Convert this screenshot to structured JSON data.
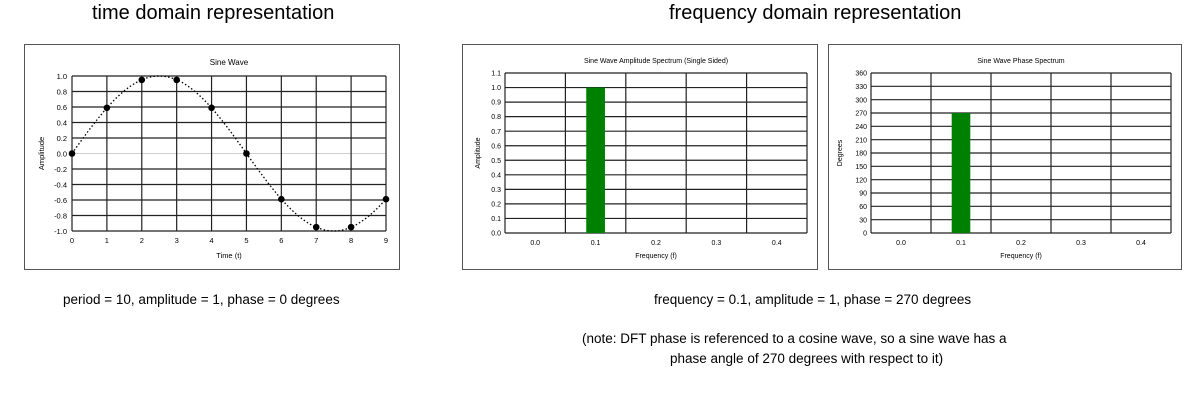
{
  "headings": {
    "time": "time domain representation",
    "frequency": "frequency domain representation"
  },
  "captions": {
    "time": "period = 10, amplitude = 1, phase = 0 degrees",
    "frequency": "frequency = 0.1, amplitude = 1, phase = 270 degrees",
    "note_line1": "(note: DFT phase is referenced to a cosine wave, so a sine wave has a",
    "note_line2": "phase angle of 270 degrees with respect to it)"
  },
  "chart_data": [
    {
      "type": "scatter",
      "title": "Sine Wave",
      "xlabel": "Time (t)",
      "ylabel": "Amplitude",
      "x": [
        0,
        1,
        2,
        3,
        4,
        5,
        6,
        7,
        8,
        9
      ],
      "y": [
        0.0,
        0.59,
        0.95,
        0.95,
        0.59,
        0.0,
        -0.59,
        -0.95,
        -0.95,
        -0.59
      ],
      "curve": "sine, period 10, dotted line",
      "xlim": [
        0,
        9
      ],
      "ylim": [
        -1.0,
        1.0
      ],
      "xticks": [
        "0",
        "1",
        "2",
        "3",
        "4",
        "5",
        "6",
        "7",
        "8",
        "9"
      ],
      "yticks": [
        "1.0",
        "0.8",
        "0.6",
        "0.4",
        "0.2",
        "0.0",
        "-0.2",
        "-0.4",
        "-0.6",
        "-0.8",
        "-1.0"
      ],
      "grid": true,
      "point_color": "#000000"
    },
    {
      "type": "bar",
      "title": "Sine Wave Amplitude Spectrum (Single Sided)",
      "xlabel": "Frequency (f)",
      "ylabel": "Amplitude",
      "categories": [
        "0.0",
        "0.1",
        "0.2",
        "0.3",
        "0.4"
      ],
      "values": [
        0,
        1.0,
        0,
        0,
        0
      ],
      "ylim": [
        0,
        1.1
      ],
      "yticks": [
        "1.1",
        "1.0",
        "0.9",
        "0.8",
        "0.7",
        "0.6",
        "0.5",
        "0.4",
        "0.3",
        "0.2",
        "0.1",
        "0.0"
      ],
      "grid": true,
      "bar_color": "#008000"
    },
    {
      "type": "bar",
      "title": "Sine Wave Phase Spectrum",
      "xlabel": "Frequency (f)",
      "ylabel": "Degrees",
      "categories": [
        "0.0",
        "0.1",
        "0.2",
        "0.3",
        "0.4"
      ],
      "values": [
        0,
        270,
        0,
        0,
        0
      ],
      "ylim": [
        0,
        360
      ],
      "yticks": [
        "360",
        "330",
        "300",
        "270",
        "240",
        "210",
        "180",
        "150",
        "120",
        "90",
        "60",
        "30",
        "0"
      ],
      "grid": true,
      "bar_color": "#008000"
    }
  ]
}
